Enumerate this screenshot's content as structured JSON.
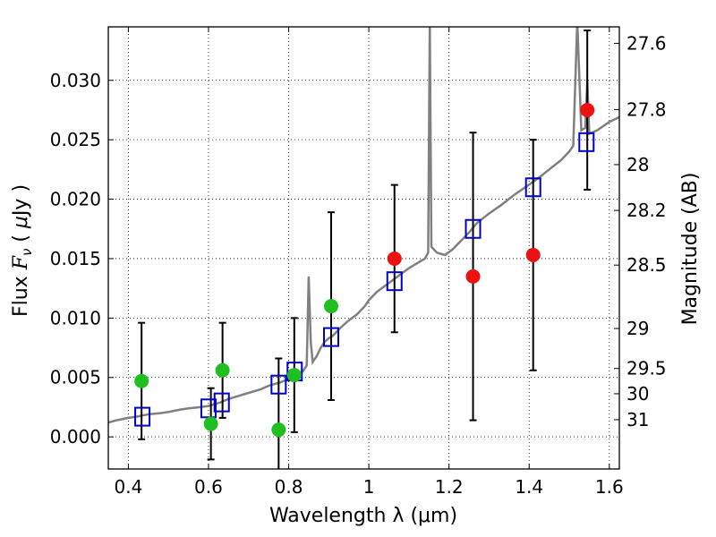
{
  "chart_data": {
    "type": "scatter",
    "xlabel": "Wavelength  λ (μm)",
    "ylabel": "Flux  F_ν  ( μJy )",
    "ylabel_parts": {
      "pre": "Flux  ",
      "sym": "F",
      "sub": "ν",
      "post": "  ( ",
      "mu": "μ",
      "unit": "Jy )"
    },
    "y2label": "Magnitude (AB)",
    "xlim": [
      0.35,
      1.625
    ],
    "ylim": [
      -0.0027,
      0.0345
    ],
    "grid": true,
    "x_ticks": [
      {
        "v": 0.4,
        "label": "0.4"
      },
      {
        "v": 0.6,
        "label": "0.6"
      },
      {
        "v": 0.8,
        "label": "0.8"
      },
      {
        "v": 1.0,
        "label": "1"
      },
      {
        "v": 1.2,
        "label": "1.2"
      },
      {
        "v": 1.4,
        "label": "1.4"
      },
      {
        "v": 1.6,
        "label": "1.6"
      }
    ],
    "y_ticks": [
      {
        "v": 0.0,
        "label": "0.000"
      },
      {
        "v": 0.005,
        "label": "0.005"
      },
      {
        "v": 0.01,
        "label": "0.010"
      },
      {
        "v": 0.015,
        "label": "0.015"
      },
      {
        "v": 0.02,
        "label": "0.020"
      },
      {
        "v": 0.025,
        "label": "0.025"
      },
      {
        "v": 0.03,
        "label": "0.030"
      }
    ],
    "y2_ticks": [
      {
        "mag": 27.6,
        "label": "27.6"
      },
      {
        "mag": 27.8,
        "label": "27.8"
      },
      {
        "mag": 28.0,
        "label": "28"
      },
      {
        "mag": 28.2,
        "label": "28.2"
      },
      {
        "mag": 28.5,
        "label": "28.5"
      },
      {
        "mag": 29.0,
        "label": "29"
      },
      {
        "mag": 29.5,
        "label": "29.5"
      },
      {
        "mag": 30.0,
        "label": "30"
      },
      {
        "mag": 31.0,
        "label": "31"
      }
    ],
    "colors": {
      "model": "#808080",
      "green": "#1fbf1f",
      "red": "#ee1111",
      "box": "#0000cc",
      "errorbar": "#000000"
    },
    "model_spectrum": [
      [
        0.35,
        0.0012
      ],
      [
        0.37,
        0.0014
      ],
      [
        0.4,
        0.0016
      ],
      [
        0.42,
        0.0017
      ],
      [
        0.45,
        0.0019
      ],
      [
        0.48,
        0.002
      ],
      [
        0.5,
        0.0021
      ],
      [
        0.53,
        0.0023
      ],
      [
        0.55,
        0.0024
      ],
      [
        0.58,
        0.0025
      ],
      [
        0.6,
        0.0026
      ],
      [
        0.63,
        0.0029
      ],
      [
        0.65,
        0.0032
      ],
      [
        0.68,
        0.0035
      ],
      [
        0.7,
        0.0037
      ],
      [
        0.73,
        0.004
      ],
      [
        0.75,
        0.0043
      ],
      [
        0.78,
        0.0046
      ],
      [
        0.8,
        0.0049
      ],
      [
        0.82,
        0.0053
      ],
      [
        0.835,
        0.0055
      ],
      [
        0.845,
        0.006
      ],
      [
        0.85,
        0.0135
      ],
      [
        0.855,
        0.008
      ],
      [
        0.86,
        0.0063
      ],
      [
        0.87,
        0.0068
      ],
      [
        0.88,
        0.0075
      ],
      [
        0.89,
        0.008
      ],
      [
        0.9,
        0.0083
      ],
      [
        0.91,
        0.0085
      ],
      [
        0.93,
        0.0092
      ],
      [
        0.95,
        0.0098
      ],
      [
        0.97,
        0.0103
      ],
      [
        0.99,
        0.011
      ],
      [
        1.0,
        0.0115
      ],
      [
        1.02,
        0.0122
      ],
      [
        1.04,
        0.0127
      ],
      [
        1.06,
        0.0132
      ],
      [
        1.08,
        0.0137
      ],
      [
        1.1,
        0.0142
      ],
      [
        1.12,
        0.0146
      ],
      [
        1.14,
        0.015
      ],
      [
        1.148,
        0.0155
      ],
      [
        1.152,
        0.035
      ],
      [
        1.156,
        0.016
      ],
      [
        1.17,
        0.0155
      ],
      [
        1.19,
        0.0153
      ],
      [
        1.21,
        0.0158
      ],
      [
        1.23,
        0.0165
      ],
      [
        1.25,
        0.0172
      ],
      [
        1.27,
        0.018
      ],
      [
        1.3,
        0.0188
      ],
      [
        1.33,
        0.0195
      ],
      [
        1.36,
        0.0203
      ],
      [
        1.39,
        0.021
      ],
      [
        1.42,
        0.0217
      ],
      [
        1.45,
        0.0225
      ],
      [
        1.48,
        0.0233
      ],
      [
        1.5,
        0.024
      ],
      [
        1.51,
        0.0245
      ],
      [
        1.52,
        0.035
      ],
      [
        1.53,
        0.0258
      ],
      [
        1.54,
        0.026
      ],
      [
        1.545,
        0.03
      ],
      [
        1.55,
        0.0255
      ],
      [
        1.57,
        0.0258
      ],
      [
        1.6,
        0.0265
      ],
      [
        1.625,
        0.0269
      ]
    ],
    "model_photometry": [
      {
        "x": 0.435,
        "y": 0.0017
      },
      {
        "x": 0.6,
        "y": 0.0024
      },
      {
        "x": 0.633,
        "y": 0.0029
      },
      {
        "x": 0.775,
        "y": 0.0044
      },
      {
        "x": 0.815,
        "y": 0.0055
      },
      {
        "x": 0.906,
        "y": 0.0084
      },
      {
        "x": 1.064,
        "y": 0.0131
      },
      {
        "x": 1.26,
        "y": 0.0175
      },
      {
        "x": 1.41,
        "y": 0.021
      },
      {
        "x": 1.543,
        "y": 0.0248
      }
    ],
    "observed_optical": [
      {
        "x": 0.433,
        "y": 0.0047,
        "err": 0.0049
      },
      {
        "x": 0.606,
        "y": 0.0011,
        "err": 0.003
      },
      {
        "x": 0.635,
        "y": 0.0056,
        "err": 0.004
      },
      {
        "x": 0.775,
        "y": 0.0006,
        "err": 0.006
      },
      {
        "x": 0.814,
        "y": 0.0052,
        "err": 0.0048
      },
      {
        "x": 0.906,
        "y": 0.011,
        "err": 0.0079
      }
    ],
    "observed_nir": [
      {
        "x": 1.064,
        "y": 0.015,
        "err": 0.0062
      },
      {
        "x": 1.26,
        "y": 0.0135,
        "err": 0.0121
      },
      {
        "x": 1.41,
        "y": 0.0153,
        "err": 0.0097
      },
      {
        "x": 1.545,
        "y": 0.0275,
        "err": 0.0067
      }
    ]
  }
}
